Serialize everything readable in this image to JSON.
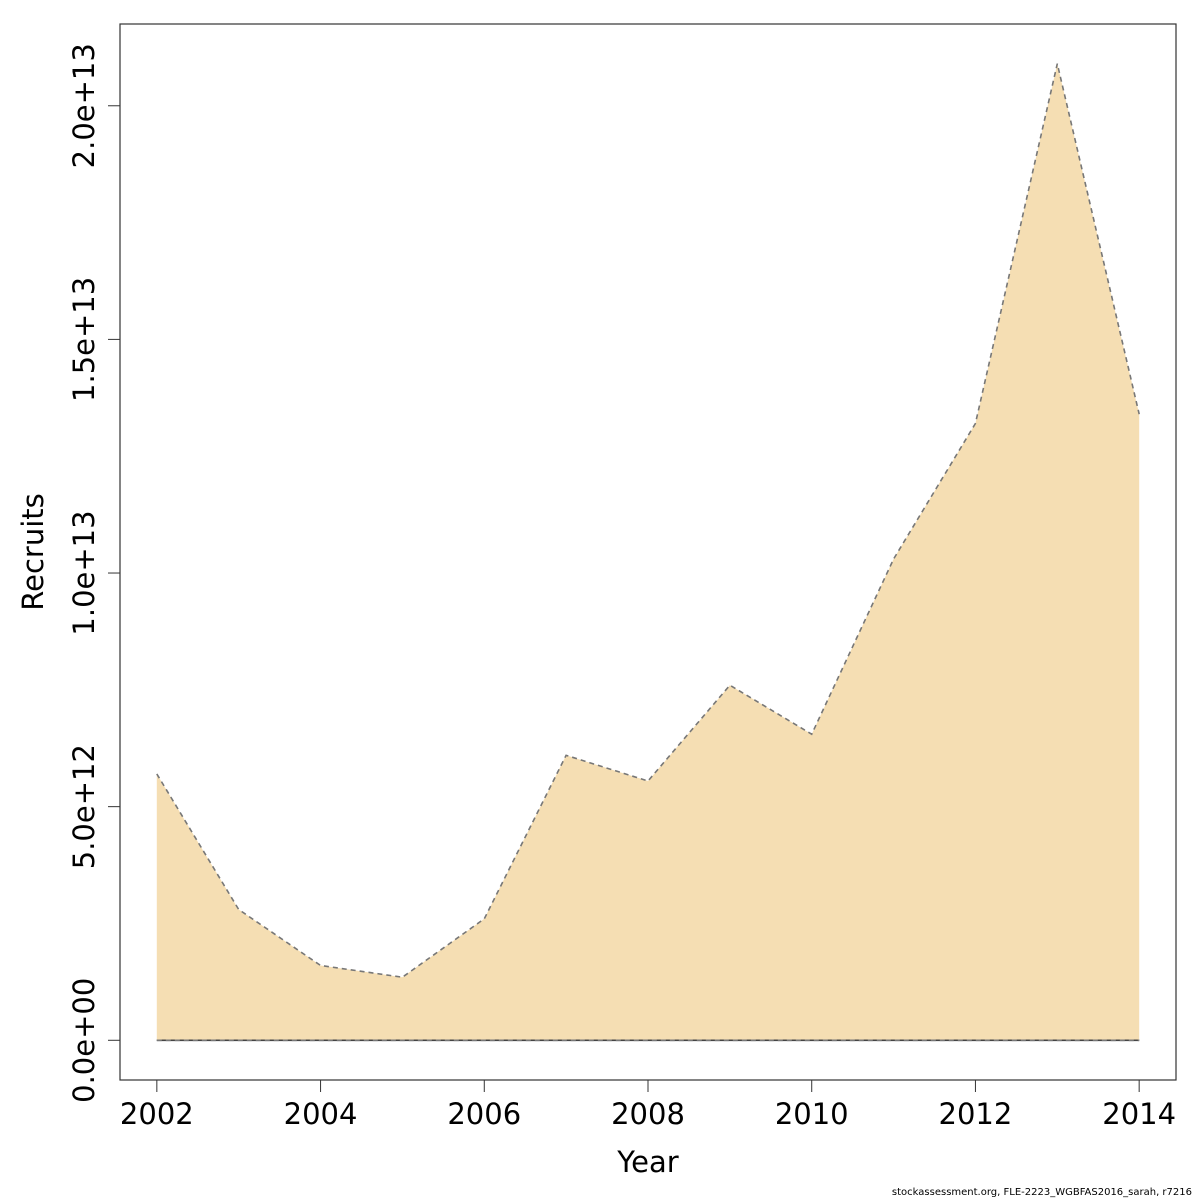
{
  "chart_data": {
    "type": "area",
    "x": [
      2002,
      2003,
      2004,
      2005,
      2006,
      2007,
      2008,
      2009,
      2010,
      2011,
      2012,
      2013,
      2014
    ],
    "upper": [
      5700000000000.0,
      2800000000000.0,
      1600000000000.0,
      1350000000000.0,
      2600000000000.0,
      6100000000000.0,
      5550000000000.0,
      7600000000000.0,
      6550000000000.0,
      10300000000000.0,
      13200000000000.0,
      20900000000000.0,
      13400000000000.0
    ],
    "lower": [
      0,
      0,
      0,
      0,
      0,
      0,
      0,
      0,
      0,
      0,
      0,
      0,
      0
    ],
    "xlabel": "Year",
    "ylabel": "Recruits",
    "xlim": [
      2001.55,
      2014.45
    ],
    "ylim": [
      -850000000000.0,
      21750000000000.0
    ],
    "xticks": [
      2002,
      2004,
      2006,
      2008,
      2010,
      2012,
      2014
    ],
    "xtick_labels": [
      "2002",
      "2004",
      "2006",
      "2008",
      "2010",
      "2012",
      "2014"
    ],
    "yticks": [
      0,
      5000000000000.0,
      10000000000000.0,
      15000000000000.0,
      20000000000000.0
    ],
    "ytick_labels": [
      "0.0e+00",
      "5.0e+12",
      "1.0e+13",
      "1.5e+13",
      "2.0e+13"
    ],
    "colors": {
      "fill": "#f5deb3",
      "border": "#777777",
      "frame": "#333333"
    },
    "grid": false,
    "legend": "none"
  },
  "footer": "stockassessment.org, FLE-2223_WGBFAS2016_sarah, r7216"
}
